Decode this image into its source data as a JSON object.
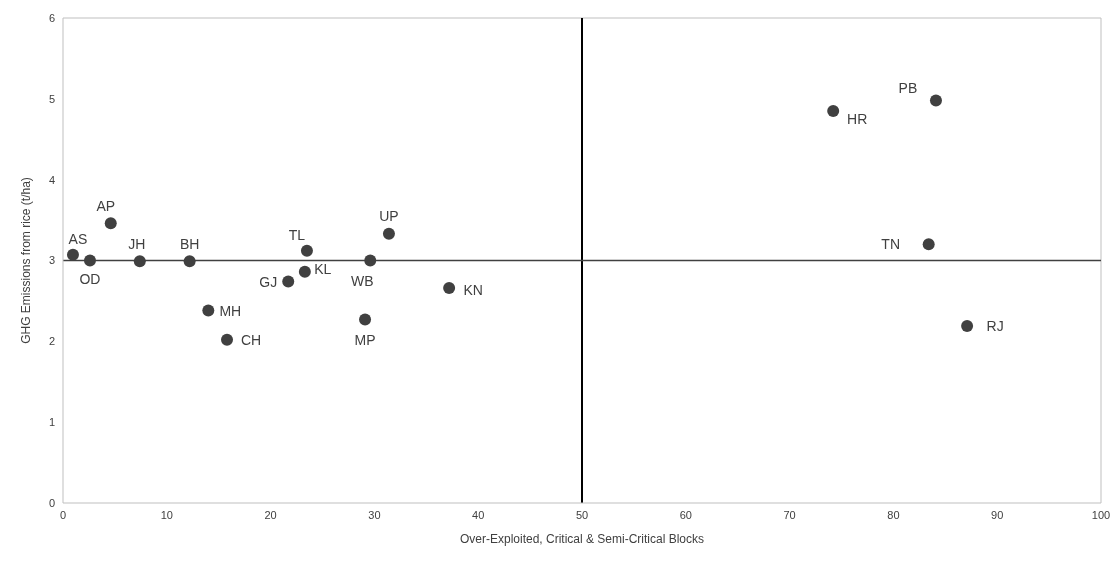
{
  "chart_data": {
    "type": "scatter",
    "xlabel": "Over-Exploited, Critical & Semi-Critical Blocks",
    "ylabel": "GHG Emissions from rice (t/ha)",
    "x": [
      0.96,
      2.6,
      4.6,
      7.4,
      12.2,
      14.0,
      15.8,
      21.7,
      23.3,
      23.5,
      29.1,
      29.6,
      31.4,
      37.2,
      74.2,
      84.1,
      83.4,
      87.1
    ],
    "series": [
      {
        "color": "#404040",
        "values": [
          3.07,
          3.0,
          3.46,
          2.99,
          2.99,
          2.38,
          2.02,
          2.74,
          2.86,
          3.12,
          2.27,
          3.0,
          3.33,
          2.66,
          4.85,
          4.98,
          3.2,
          2.19
        ]
      }
    ],
    "xlim": [
      0,
      100
    ],
    "xticks": [
      0,
      10,
      20,
      30,
      40,
      50,
      60,
      70,
      80,
      90,
      100
    ],
    "ylim": [
      0,
      6
    ],
    "yticks": [
      0,
      1,
      2,
      3,
      4,
      5,
      6
    ],
    "marker": "circle",
    "grid": false,
    "ref_lines": [
      {
        "axis": "x",
        "value": 50,
        "color": "#000000"
      },
      {
        "axis": "y",
        "value": 3,
        "color": "#404040"
      }
    ],
    "annotations": [
      {
        "text": "AS",
        "x": 0.96,
        "y": 3.07
      },
      {
        "text": "OD",
        "x": 2.6,
        "y": 3.0
      },
      {
        "text": "AP",
        "x": 4.6,
        "y": 3.46
      },
      {
        "text": "JH",
        "x": 7.4,
        "y": 2.99
      },
      {
        "text": "BH",
        "x": 12.2,
        "y": 2.99
      },
      {
        "text": "MH",
        "x": 14.0,
        "y": 2.38
      },
      {
        "text": "CH",
        "x": 15.8,
        "y": 2.02
      },
      {
        "text": "GJ",
        "x": 21.7,
        "y": 2.74
      },
      {
        "text": "KL",
        "x": 23.3,
        "y": 2.86
      },
      {
        "text": "TL",
        "x": 23.5,
        "y": 3.12
      },
      {
        "text": "MP",
        "x": 29.1,
        "y": 2.27
      },
      {
        "text": "WB",
        "x": 29.6,
        "y": 3.0
      },
      {
        "text": "UP",
        "x": 31.4,
        "y": 3.33
      },
      {
        "text": "KN",
        "x": 37.2,
        "y": 2.66
      },
      {
        "text": "HR",
        "x": 74.2,
        "y": 4.85
      },
      {
        "text": "PB",
        "x": 84.1,
        "y": 4.98
      },
      {
        "text": "TN",
        "x": 83.4,
        "y": 3.2
      },
      {
        "text": "RJ",
        "x": 87.1,
        "y": 2.19
      }
    ]
  }
}
